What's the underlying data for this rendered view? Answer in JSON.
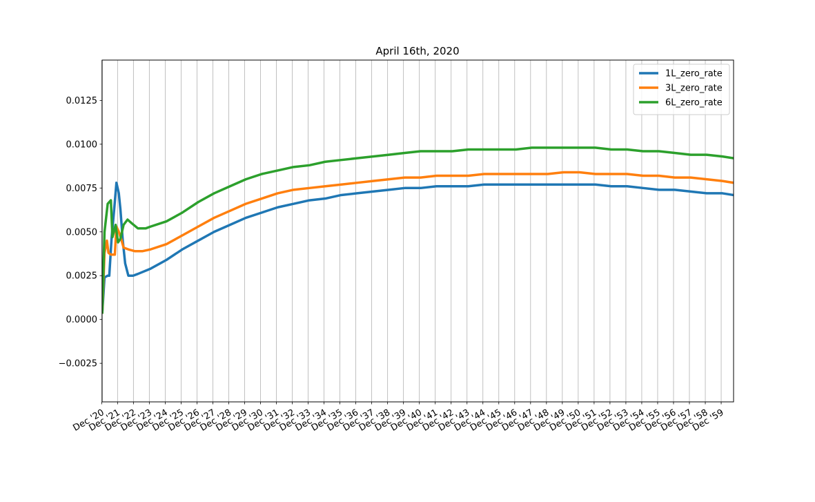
{
  "chart_data": {
    "type": "line",
    "title": "April 16th, 2020",
    "xlabel": "",
    "ylabel": "",
    "ylim": [
      -0.0047,
      0.0148
    ],
    "xlim": [
      2020.95,
      2060.7
    ],
    "grid": {
      "x": true,
      "y": false
    },
    "legend_position": "top-right",
    "y_ticks": [
      {
        "value": -0.0025,
        "label": "−0.0025"
      },
      {
        "value": 0.0,
        "label": "0.0000"
      },
      {
        "value": 0.0025,
        "label": "0.0025"
      },
      {
        "value": 0.005,
        "label": "0.0050"
      },
      {
        "value": 0.0075,
        "label": "0.0075"
      },
      {
        "value": 0.01,
        "label": "0.0100"
      },
      {
        "value": 0.0125,
        "label": "0.0125"
      }
    ],
    "x_ticks": [
      "Dec '20",
      "Dec '21",
      "Dec '22",
      "Dec '23",
      "Dec '24",
      "Dec '25",
      "Dec '26",
      "Dec '27",
      "Dec '28",
      "Dec '29",
      "Dec '30",
      "Dec '31",
      "Dec '32",
      "Dec '33",
      "Dec '34",
      "Dec '35",
      "Dec '36",
      "Dec '37",
      "Dec '38",
      "Dec '39",
      "Dec '40",
      "Dec '41",
      "Dec '42",
      "Dec '43",
      "Dec '44",
      "Dec '45",
      "Dec '46",
      "Dec '47",
      "Dec '48",
      "Dec '49",
      "Dec '50",
      "Dec '51",
      "Dec '52",
      "Dec '53",
      "Dec '54",
      "Dec '55",
      "Dec '56",
      "Dec '57",
      "Dec '58",
      "Dec '59"
    ],
    "series": [
      {
        "name": "1L_zero_rate",
        "color": "#1f77b4",
        "x": [
          2020.96,
          2021.1,
          2021.3,
          2021.4,
          2021.55,
          2021.7,
          2021.85,
          2022.0,
          2022.1,
          2022.25,
          2022.4,
          2022.6,
          2022.9,
          2023.2,
          2024.0,
          2025.0,
          2026.0,
          2027.0,
          2028.0,
          2029.0,
          2030.0,
          2031.0,
          2032.0,
          2033.0,
          2034.0,
          2035.0,
          2036.0,
          2037.0,
          2038.0,
          2039.0,
          2040.0,
          2041.0,
          2042.0,
          2043.0,
          2044.0,
          2045.0,
          2046.0,
          2047.0,
          2048.0,
          2049.0,
          2050.0,
          2051.0,
          2052.0,
          2053.0,
          2054.0,
          2055.0,
          2056.0,
          2057.0,
          2058.0,
          2059.0,
          2060.0,
          2060.7
        ],
        "values": [
          0.0004,
          0.0024,
          0.0025,
          0.0025,
          0.0047,
          0.0062,
          0.0078,
          0.0072,
          0.0063,
          0.0045,
          0.0032,
          0.0025,
          0.0025,
          0.0026,
          0.0029,
          0.0034,
          0.004,
          0.0045,
          0.005,
          0.0054,
          0.0058,
          0.0061,
          0.0064,
          0.0066,
          0.0068,
          0.0069,
          0.0071,
          0.0072,
          0.0073,
          0.0074,
          0.0075,
          0.0075,
          0.0076,
          0.0076,
          0.0076,
          0.0077,
          0.0077,
          0.0077,
          0.0077,
          0.0077,
          0.0077,
          0.0077,
          0.0077,
          0.0076,
          0.0076,
          0.0075,
          0.0074,
          0.0074,
          0.0073,
          0.0072,
          0.0072,
          0.0071
        ]
      },
      {
        "name": "3L_zero_rate",
        "color": "#ff7f0e",
        "x": [
          2020.96,
          2021.1,
          2021.25,
          2021.35,
          2021.5,
          2021.75,
          2021.85,
          2022.0,
          2022.15,
          2022.3,
          2022.6,
          2023.0,
          2023.5,
          2024.0,
          2025.0,
          2026.0,
          2027.0,
          2028.0,
          2029.0,
          2030.0,
          2031.0,
          2032.0,
          2033.0,
          2034.0,
          2035.0,
          2036.0,
          2037.0,
          2038.0,
          2039.0,
          2040.0,
          2041.0,
          2042.0,
          2043.0,
          2044.0,
          2045.0,
          2046.0,
          2047.0,
          2048.0,
          2049.0,
          2050.0,
          2051.0,
          2052.0,
          2053.0,
          2054.0,
          2055.0,
          2056.0,
          2057.0,
          2058.0,
          2059.0,
          2060.0,
          2060.7
        ],
        "values": [
          0.0004,
          0.0038,
          0.0045,
          0.0038,
          0.0037,
          0.0037,
          0.0053,
          0.005,
          0.0046,
          0.0041,
          0.004,
          0.0039,
          0.0039,
          0.004,
          0.0043,
          0.0048,
          0.0053,
          0.0058,
          0.0062,
          0.0066,
          0.0069,
          0.0072,
          0.0074,
          0.0075,
          0.0076,
          0.0077,
          0.0078,
          0.0079,
          0.008,
          0.0081,
          0.0081,
          0.0082,
          0.0082,
          0.0082,
          0.0083,
          0.0083,
          0.0083,
          0.0083,
          0.0083,
          0.0084,
          0.0084,
          0.0083,
          0.0083,
          0.0083,
          0.0082,
          0.0082,
          0.0081,
          0.0081,
          0.008,
          0.0079,
          0.0078
        ]
      },
      {
        "name": "6L_zero_rate",
        "color": "#2ca02c",
        "x": [
          2020.96,
          2021.1,
          2021.3,
          2021.5,
          2021.6,
          2021.8,
          2021.95,
          2022.1,
          2022.3,
          2022.55,
          2022.8,
          2023.2,
          2023.7,
          2024.0,
          2025.0,
          2026.0,
          2027.0,
          2028.0,
          2029.0,
          2030.0,
          2031.0,
          2032.0,
          2033.0,
          2034.0,
          2035.0,
          2036.0,
          2037.0,
          2038.0,
          2039.0,
          2040.0,
          2041.0,
          2042.0,
          2043.0,
          2044.0,
          2045.0,
          2046.0,
          2047.0,
          2048.0,
          2049.0,
          2050.0,
          2051.0,
          2052.0,
          2053.0,
          2054.0,
          2055.0,
          2056.0,
          2057.0,
          2058.0,
          2059.0,
          2060.0,
          2060.7
        ],
        "values": [
          0.0004,
          0.005,
          0.0066,
          0.0068,
          0.0047,
          0.0054,
          0.0044,
          0.0046,
          0.0054,
          0.0057,
          0.0055,
          0.0052,
          0.0052,
          0.0053,
          0.0056,
          0.0061,
          0.0067,
          0.0072,
          0.0076,
          0.008,
          0.0083,
          0.0085,
          0.0087,
          0.0088,
          0.009,
          0.0091,
          0.0092,
          0.0093,
          0.0094,
          0.0095,
          0.0096,
          0.0096,
          0.0096,
          0.0097,
          0.0097,
          0.0097,
          0.0097,
          0.0098,
          0.0098,
          0.0098,
          0.0098,
          0.0098,
          0.0097,
          0.0097,
          0.0096,
          0.0096,
          0.0095,
          0.0094,
          0.0094,
          0.0093,
          0.0092
        ]
      }
    ]
  }
}
